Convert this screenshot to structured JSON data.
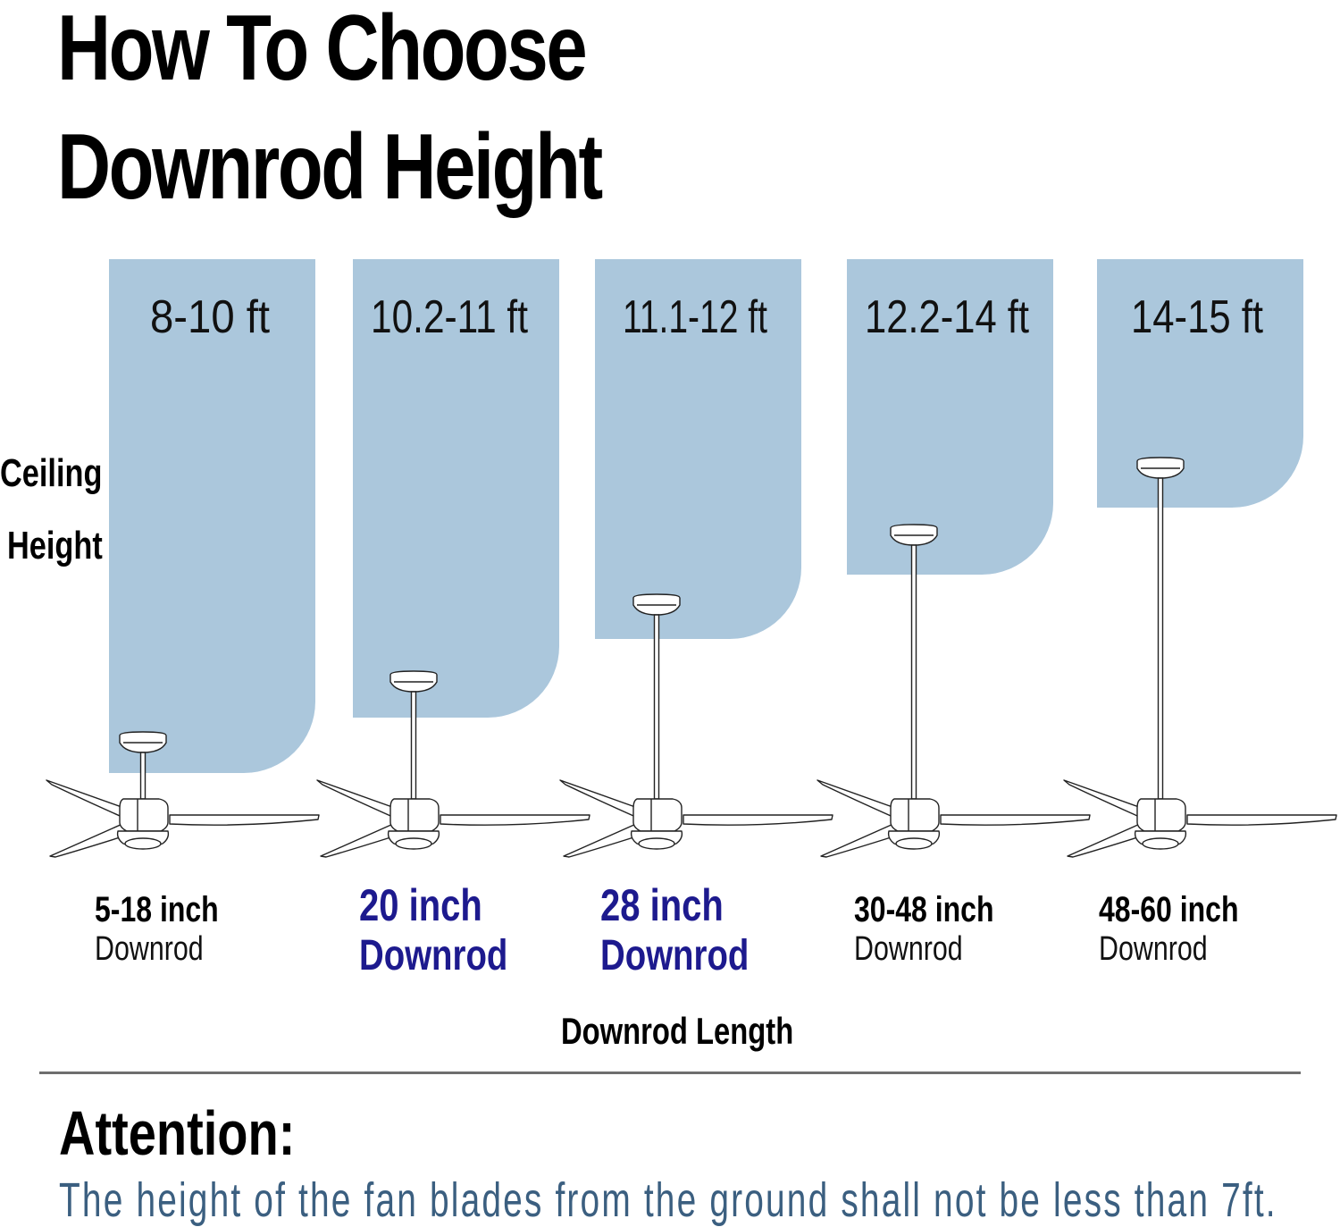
{
  "title": {
    "line1": "How To Choose",
    "line2": "Downrod Height"
  },
  "side_label": {
    "line1": "Ceiling",
    "line2": "Height"
  },
  "colors": {
    "panel_fill": "#abc7dc",
    "highlight_text": "#1d1a8e",
    "attention_text": "#3b5f80",
    "divider": "#6e6e6e"
  },
  "panels": [
    {
      "range": "8-10 ft",
      "downrod_size": "5-18 inch",
      "downrod_word": "Downrod",
      "highlighted": false
    },
    {
      "range": "10.2-11 ft",
      "downrod_size": "20 inch",
      "downrod_word": "Downrod",
      "highlighted": true
    },
    {
      "range": "11.1-12 ft",
      "downrod_size": "28 inch",
      "downrod_word": "Downrod",
      "highlighted": true
    },
    {
      "range": "12.2-14 ft",
      "downrod_size": "30-48 inch",
      "downrod_word": "Downrod",
      "highlighted": false
    },
    {
      "range": "14-15 ft",
      "downrod_size": "48-60 inch",
      "downrod_word": "Downrod",
      "highlighted": false
    }
  ],
  "axis_label": "Downrod Length",
  "attention": {
    "heading": "Attention:",
    "text": "The height of the fan blades from the ground shall not be less than 7ft."
  },
  "icons": {
    "fan": "ceiling-fan-icon"
  }
}
